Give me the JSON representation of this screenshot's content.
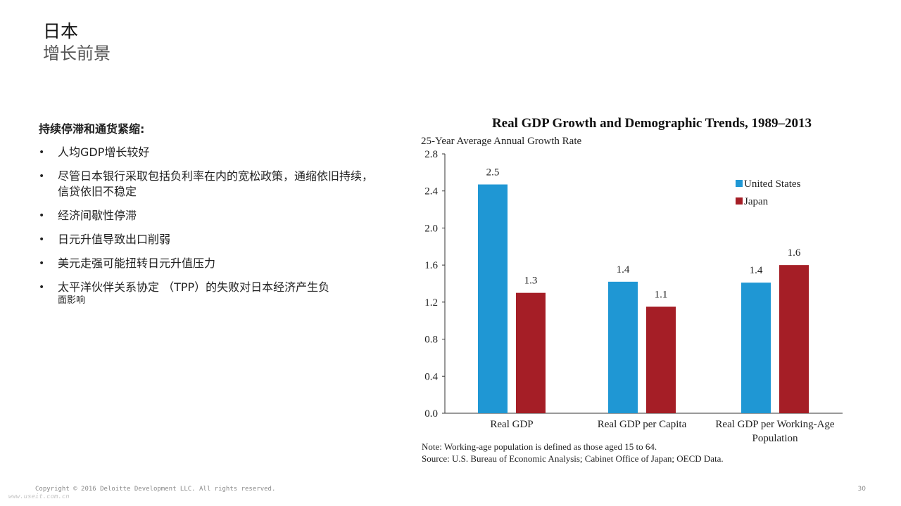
{
  "slide": {
    "title": "日本",
    "subtitle": "增长前景"
  },
  "content": {
    "heading": "持续停滞和通货紧缩:",
    "bullets": [
      {
        "text": "人均GDP增长较好"
      },
      {
        "text": "尽管日本银行采取包括负利率在内的宽松政策，通缩依旧持续，信贷依旧不稳定"
      },
      {
        "text": "经济间歇性停滞"
      },
      {
        "text": "日元升值导致出口削弱"
      },
      {
        "text": "美元走强可能扭转日元升值压力"
      },
      {
        "text": "太平洋伙伴关系协定 （TPP）的失败对日本经济产生负",
        "text_small": "面影响"
      }
    ]
  },
  "chart_data": {
    "type": "bar",
    "title": "Real GDP Growth and Demographic Trends, 1989–2013",
    "ylabel": "25-Year Average Annual Growth Rate",
    "categories": [
      [
        "Real GDP"
      ],
      [
        "Real GDP per Capita"
      ],
      [
        "Real GDP per Working-Age",
        "Population"
      ]
    ],
    "series": [
      {
        "name": "United States",
        "color": "#1f97d4",
        "values": [
          2.47,
          1.42,
          1.41
        ],
        "labels": [
          "2.5",
          "1.4",
          "1.4"
        ]
      },
      {
        "name": "Japan",
        "color": "#a51e26",
        "values": [
          1.3,
          1.15,
          1.6
        ],
        "labels": [
          "1.3",
          "1.1",
          "1.6"
        ]
      }
    ],
    "ylim": [
      0,
      2.8
    ],
    "yticks": [
      "0.0",
      "0.4",
      "0.8",
      "1.2",
      "1.6",
      "2.0",
      "2.4",
      "2.8"
    ],
    "legend_position": "top-right",
    "notes": [
      "Note: Working-age population is defined as those aged 15 to 64.",
      "Source: U.S. Bureau of Economic Analysis; Cabinet Office of Japan; OECD Data."
    ]
  },
  "footer": {
    "copyright": "Copyright © 2016 Deloitte Development LLC. All rights reserved.",
    "page_number": "30",
    "watermark": "www.useit.com.cn"
  }
}
